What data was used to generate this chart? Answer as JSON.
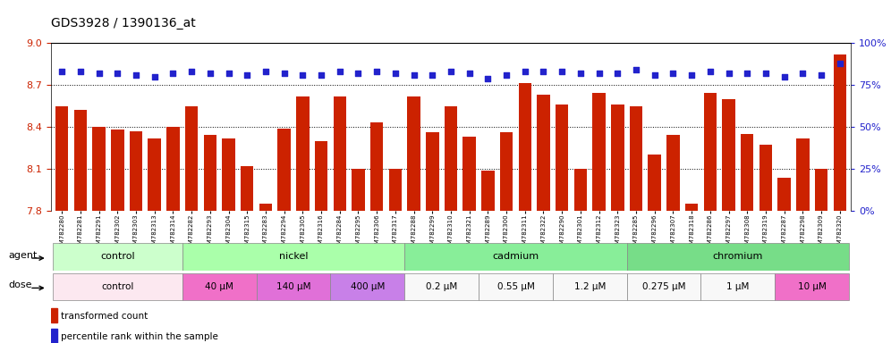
{
  "title": "GDS3928 / 1390136_at",
  "samples": [
    "GSM782280",
    "GSM782281",
    "GSM782291",
    "GSM782302",
    "GSM782303",
    "GSM782313",
    "GSM782314",
    "GSM782282",
    "GSM782293",
    "GSM782304",
    "GSM782315",
    "GSM782283",
    "GSM782294",
    "GSM782305",
    "GSM782316",
    "GSM782284",
    "GSM782295",
    "GSM782306",
    "GSM782317",
    "GSM782288",
    "GSM782299",
    "GSM782310",
    "GSM782321",
    "GSM782289",
    "GSM782300",
    "GSM782311",
    "GSM782322",
    "GSM782290",
    "GSM782301",
    "GSM782312",
    "GSM782323",
    "GSM782285",
    "GSM782296",
    "GSM782307",
    "GSM782318",
    "GSM782286",
    "GSM782297",
    "GSM782308",
    "GSM782319",
    "GSM782287",
    "GSM782298",
    "GSM782309",
    "GSM782320"
  ],
  "bar_values": [
    8.55,
    8.52,
    8.4,
    8.38,
    8.37,
    8.32,
    8.4,
    8.55,
    8.34,
    8.32,
    8.12,
    7.85,
    8.39,
    8.62,
    8.3,
    8.62,
    8.1,
    8.43,
    8.1,
    8.62,
    8.36,
    8.55,
    8.33,
    8.09,
    8.36,
    8.71,
    8.63,
    8.56,
    8.1,
    8.64,
    8.56,
    8.55,
    8.2,
    8.34,
    7.85,
    8.64,
    8.6,
    8.35,
    8.27,
    8.04,
    8.32,
    8.1,
    8.92
  ],
  "percentile_values": [
    83,
    83,
    82,
    82,
    81,
    80,
    82,
    83,
    82,
    82,
    81,
    83,
    82,
    81,
    81,
    83,
    82,
    83,
    82,
    81,
    81,
    83,
    82,
    79,
    81,
    83,
    83,
    83,
    82,
    82,
    82,
    84,
    81,
    82,
    81,
    83,
    82,
    82,
    82,
    80,
    82,
    81,
    88
  ],
  "ylim_left": [
    7.8,
    9.0
  ],
  "ylim_right": [
    0,
    100
  ],
  "yticks_left": [
    7.8,
    8.1,
    8.4,
    8.7,
    9.0
  ],
  "yticks_right": [
    0,
    25,
    50,
    75,
    100
  ],
  "bar_color": "#cc2200",
  "dot_color": "#2222cc",
  "agent_groups": [
    {
      "label": "control",
      "start": 0,
      "end": 6,
      "color": "#ccffcc"
    },
    {
      "label": "nickel",
      "start": 7,
      "end": 18,
      "color": "#aaffaa"
    },
    {
      "label": "cadmium",
      "start": 19,
      "end": 30,
      "color": "#88ee88"
    },
    {
      "label": "chromium",
      "start": 31,
      "end": 42,
      "color": "#77dd77"
    }
  ],
  "dose_groups": [
    {
      "label": "control",
      "start": 0,
      "end": 6,
      "color": "#fce8f0"
    },
    {
      "label": "40 μM",
      "start": 7,
      "end": 10,
      "color": "#f080c0"
    },
    {
      "label": "140 μM",
      "start": 11,
      "end": 14,
      "color": "#e070d8"
    },
    {
      "label": "400 μM",
      "start": 15,
      "end": 18,
      "color": "#c888e8"
    },
    {
      "label": "0.2 μM",
      "start": 19,
      "end": 22,
      "color": "#ffffff"
    },
    {
      "label": "0.55 μM",
      "start": 23,
      "end": 26,
      "color": "#ffffff"
    },
    {
      "label": "1.2 μM",
      "start": 27,
      "end": 30,
      "color": "#ffffff"
    },
    {
      "label": "0.275 μM",
      "start": 31,
      "end": 34,
      "color": "#ffffff"
    },
    {
      "label": "1 μM",
      "start": 35,
      "end": 38,
      "color": "#ffffff"
    },
    {
      "label": "10 μM",
      "start": 39,
      "end": 42,
      "color": "#f080c0"
    }
  ],
  "left_axis_color": "#cc2200",
  "right_axis_color": "#2222cc"
}
